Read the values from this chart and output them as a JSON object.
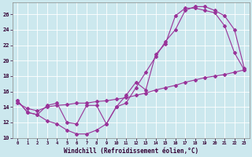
{
  "xlabel": "Windchill (Refroidissement éolien,°C)",
  "bg_color": "#cce8ee",
  "grid_color": "#ffffff",
  "line_color": "#993399",
  "xlim": [
    -0.5,
    23.5
  ],
  "ylim": [
    10,
    27.5
  ],
  "xticks": [
    0,
    1,
    2,
    3,
    4,
    5,
    6,
    7,
    8,
    9,
    10,
    11,
    12,
    13,
    14,
    15,
    16,
    17,
    18,
    19,
    20,
    21,
    22,
    23
  ],
  "yticks": [
    10,
    12,
    14,
    16,
    18,
    20,
    22,
    24,
    26
  ],
  "curve1_x": [
    0,
    1,
    2,
    3,
    4,
    5,
    6,
    7,
    8,
    9,
    10,
    11,
    12,
    13,
    14,
    15,
    16,
    17,
    18,
    19,
    20,
    21,
    22,
    23
  ],
  "curve1_y": [
    14.8,
    13.3,
    13.0,
    12.2,
    11.8,
    11.0,
    10.5,
    10.5,
    11.0,
    11.8,
    14.0,
    14.5,
    16.5,
    18.5,
    20.5,
    22.5,
    24.0,
    26.5,
    27.0,
    27.0,
    26.5,
    25.8,
    24.0,
    19.0
  ],
  "curve2_x": [
    0,
    1,
    2,
    3,
    4,
    5,
    6,
    7,
    8,
    9,
    10,
    11,
    12,
    13,
    14,
    15,
    16,
    17,
    18,
    19,
    20,
    21,
    22,
    23
  ],
  "curve2_y": [
    14.8,
    13.3,
    13.0,
    14.2,
    14.5,
    12.0,
    11.8,
    14.2,
    14.2,
    11.8,
    14.0,
    15.5,
    17.2,
    16.2,
    20.8,
    22.2,
    25.8,
    26.8,
    26.8,
    26.5,
    26.2,
    24.5,
    21.0,
    18.8
  ],
  "curve3_x": [
    0,
    1,
    2,
    3,
    4,
    5,
    6,
    7,
    8,
    9,
    10,
    11,
    12,
    13,
    14,
    15,
    16,
    17,
    18,
    19,
    20,
    21,
    22,
    23
  ],
  "curve3_y": [
    14.5,
    13.8,
    13.5,
    14.0,
    14.2,
    14.3,
    14.5,
    14.5,
    14.7,
    14.8,
    15.0,
    15.2,
    15.5,
    15.8,
    16.2,
    16.5,
    16.8,
    17.2,
    17.5,
    17.8,
    18.0,
    18.2,
    18.5,
    18.8
  ],
  "marker_size": 2.0,
  "line_width": 0.8,
  "xlabel_fontsize": 5.5,
  "tick_fontsize": 4.5
}
